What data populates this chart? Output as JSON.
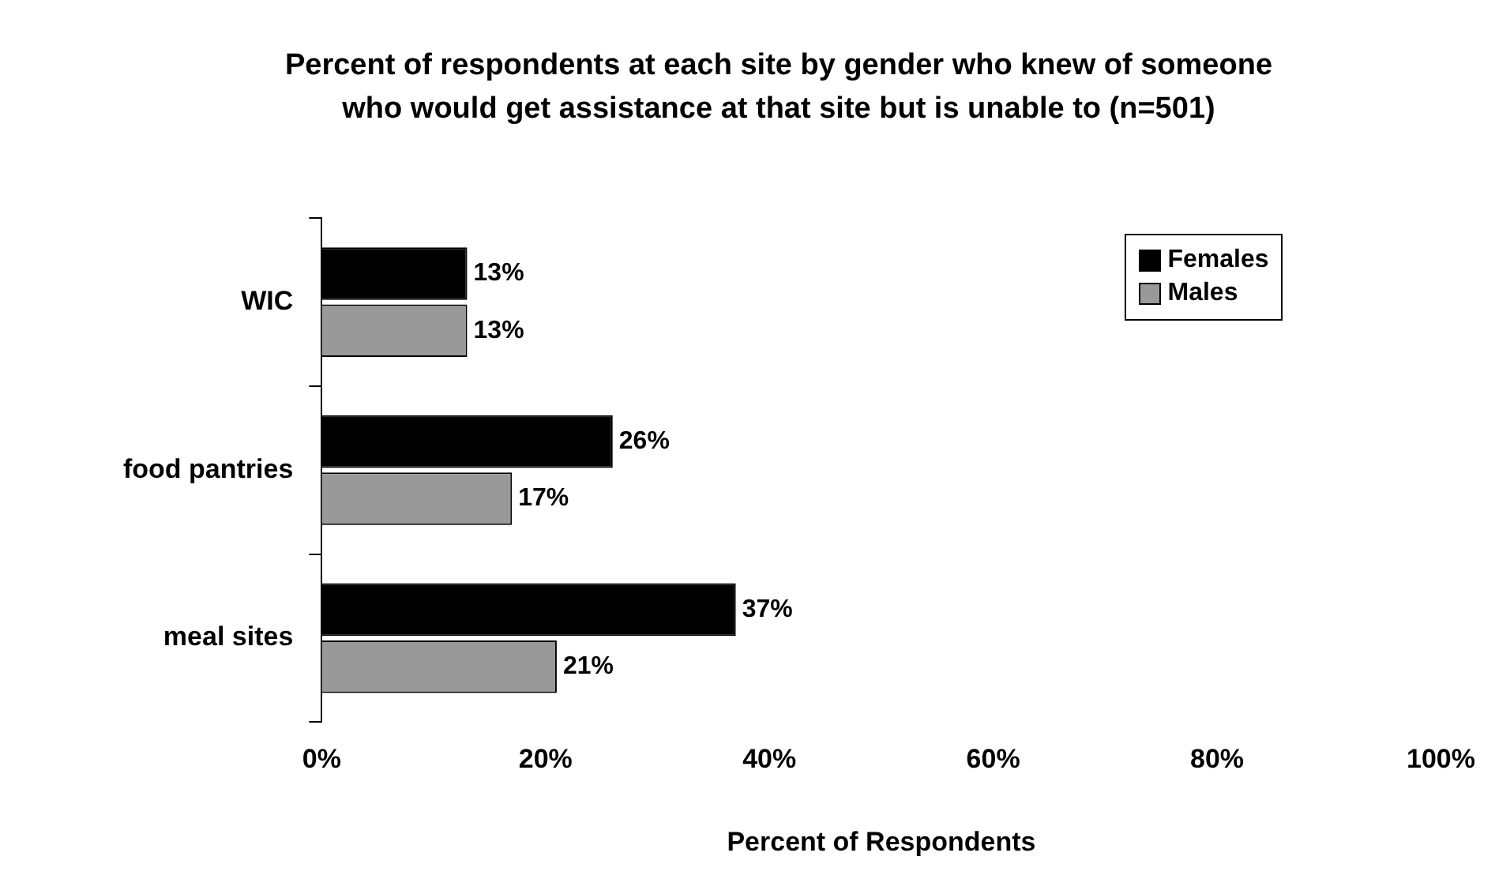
{
  "chart_data": {
    "type": "bar",
    "orientation": "horizontal",
    "title": "Percent of respondents at each site by gender who knew of someone who would get assistance at that site but is unable to (n=501)",
    "xlabel": "Percent of Respondents",
    "categories": [
      "WIC",
      "food pantries",
      "meal sites"
    ],
    "series": [
      {
        "name": "Females",
        "color": "#000000",
        "values": [
          13,
          26,
          37
        ],
        "value_labels": [
          "13%",
          "26%",
          "37%"
        ]
      },
      {
        "name": "Males",
        "color": "#999999",
        "values": [
          13,
          17,
          21
        ],
        "value_labels": [
          "13%",
          "17%",
          "21%"
        ]
      }
    ],
    "xlim": [
      0,
      100
    ],
    "xticks": [
      {
        "value": 0,
        "label": "0%"
      },
      {
        "value": 20,
        "label": "20%"
      },
      {
        "value": 40,
        "label": "40%"
      },
      {
        "value": 60,
        "label": "60%"
      },
      {
        "value": 80,
        "label": "80%"
      },
      {
        "value": 100,
        "label": "100%"
      }
    ],
    "grid": false,
    "legend": "top right"
  }
}
